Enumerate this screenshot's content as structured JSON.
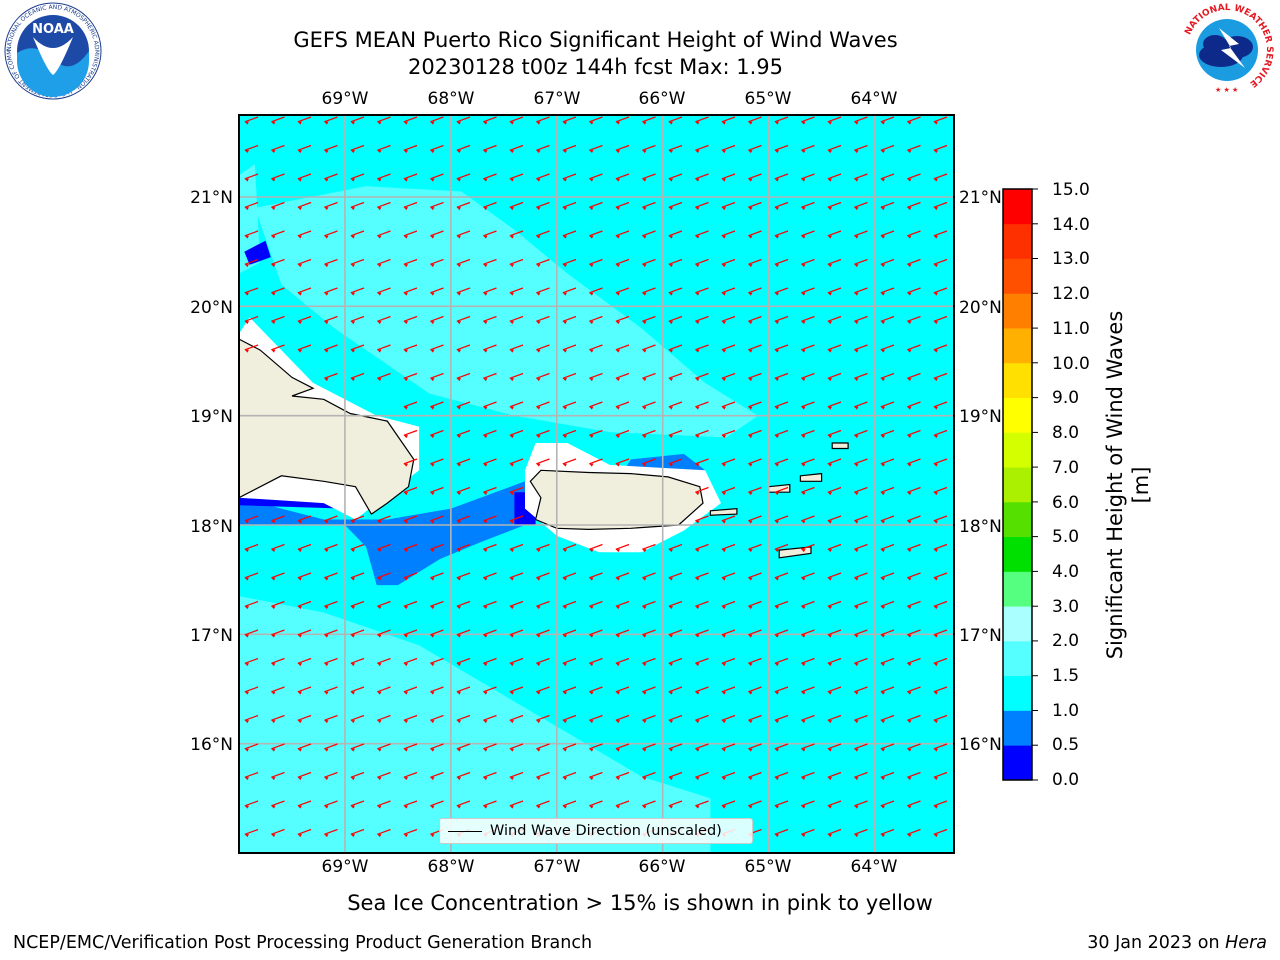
{
  "header": {
    "title_line1": "GEFS MEAN Puerto Rico Significant Height of Wind Waves",
    "title_line2": "20230128 t00z 144h fcst   Max: 1.95"
  },
  "map": {
    "lon_ticks": [
      "69°W",
      "68°W",
      "67°W",
      "66°W",
      "65°W",
      "64°W"
    ],
    "lat_ticks": [
      "21°N",
      "20°N",
      "19°N",
      "18°N",
      "17°N",
      "16°N"
    ],
    "lon_range": [
      -70,
      -63.25
    ],
    "lat_range": [
      15,
      21.75
    ],
    "ocean_color": "#00ffff",
    "land_color": "#f0eedc",
    "arrow_color": "#ff0000",
    "wind_direction": "from east-northeast"
  },
  "legend": {
    "label": "Wind Wave Direction (unscaled)"
  },
  "colorbar": {
    "title": "Significant Height of Wind Waves [m]",
    "levels": [
      "0.0",
      "0.5",
      "1.0",
      "1.5",
      "2.0",
      "3.0",
      "4.0",
      "5.0",
      "6.0",
      "7.0",
      "8.0",
      "9.0",
      "10.0",
      "11.0",
      "12.0",
      "13.0",
      "14.0",
      "15.0"
    ],
    "colors": [
      "#0000ff",
      "#0080ff",
      "#00ffff",
      "#55ffff",
      "#aaffff",
      "#55ff80",
      "#00e000",
      "#55e000",
      "#aaf000",
      "#d4ff00",
      "#ffff00",
      "#ffe000",
      "#ffb000",
      "#ff8000",
      "#ff5000",
      "#ff3000",
      "#ff0000"
    ]
  },
  "note": "Sea Ice Concentration > 15% is shown in pink to yellow",
  "footer": {
    "left": "NCEP/EMC/Verification Post Processing Product Generation Branch",
    "date": "30 Jan 2023 on",
    "host": "Hera"
  },
  "logos": {
    "noaa_text": "NOAA",
    "noaa_ring_text": "NATIONAL OCEANIC AND ATMOSPHERIC ADMINISTRATION · U.S. DEPARTMENT OF COMMERCE",
    "nws_ring_text": "NATIONAL WEATHER SERVICE"
  }
}
